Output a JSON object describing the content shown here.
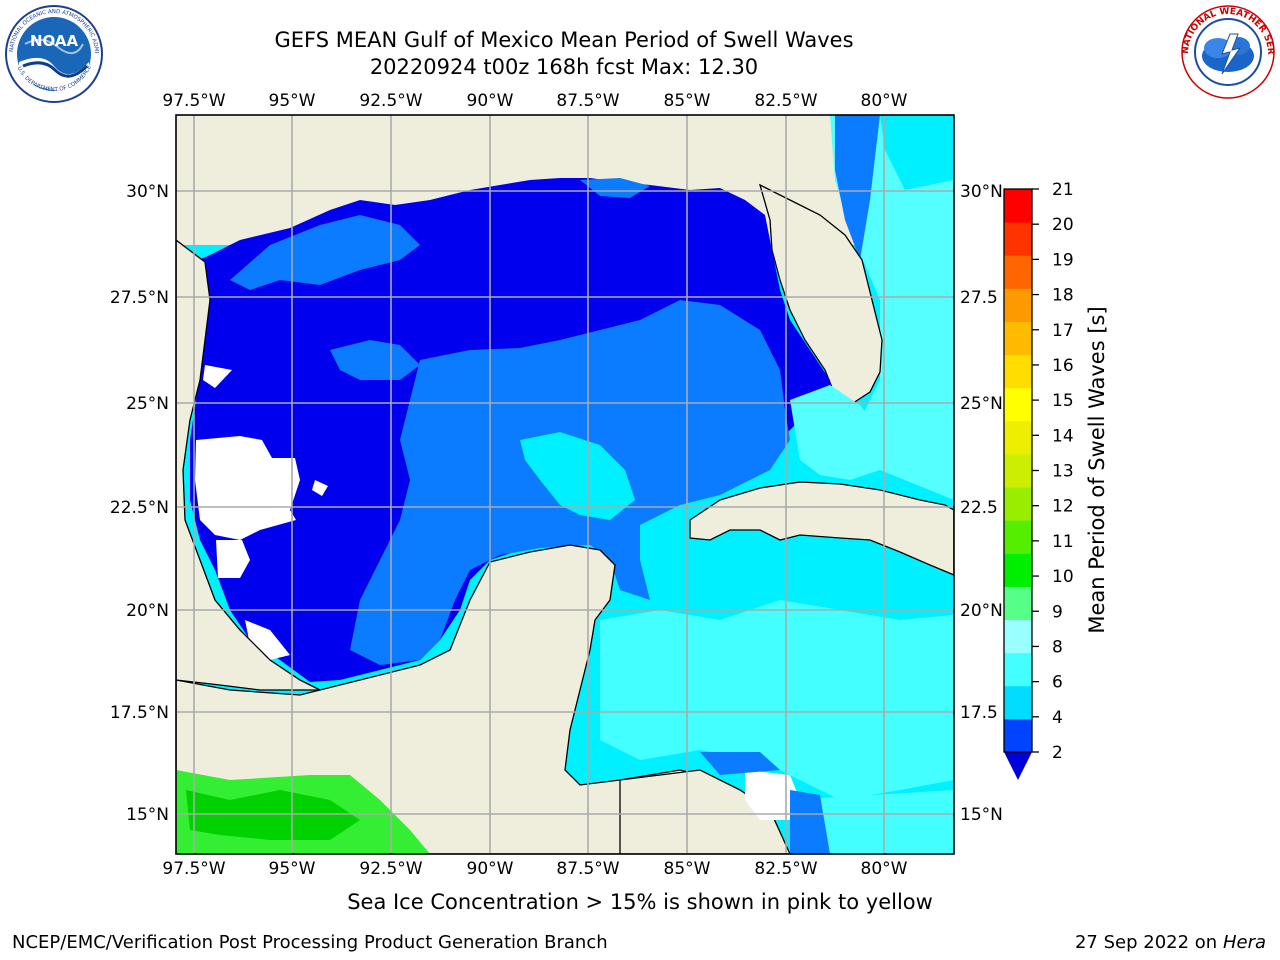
{
  "header": {
    "title_line1": "GEFS MEAN Gulf of Mexico Mean Period of Swell Waves",
    "title_line2": "20220924 t00z 168h fcst   Max: 12.30"
  },
  "logos": {
    "left": "noaa-logo",
    "right": "national-weather-service-logo",
    "left_text": "NOAA",
    "right_ring_text": "NATIONAL WEATHER SERVICE"
  },
  "map": {
    "lon_labels": [
      "97.5°W",
      "95°W",
      "92.5°W",
      "90°W",
      "87.5°W",
      "85°W",
      "82.5°W",
      "80°W"
    ],
    "lat_labels_left": [
      "30°N",
      "27.5°N",
      "25°N",
      "22.5°N",
      "20°N",
      "17.5°N",
      "15°N"
    ],
    "lat_labels_right": [
      "30°N",
      "27.5",
      "25°N",
      "22.5",
      "20°N",
      "17.5",
      "15°N"
    ],
    "gridline_color": "#aaaaaa",
    "land_color": "#efeddc"
  },
  "colorbar": {
    "label": "Mean Period of Swell Waves [s]",
    "ticks": [
      "2",
      "4",
      "6",
      "8",
      "9",
      "10",
      "11",
      "12",
      "13",
      "14",
      "15",
      "16",
      "17",
      "18",
      "19",
      "20",
      "21"
    ],
    "colors": [
      "#0044ff",
      "#00ddff",
      "#44ffff",
      "#99ffff",
      "#55ff88",
      "#00ee00",
      "#55ee00",
      "#99ee00",
      "#ccee00",
      "#eeee00",
      "#ffff00",
      "#ffdd00",
      "#ffbb00",
      "#ff9900",
      "#ff6600",
      "#ff3300",
      "#ff0000"
    ],
    "extend_color": "#0000dd"
  },
  "note": "Sea Ice Concentration > 15% is shown in pink to yellow",
  "footer": {
    "left": "NCEP/EMC/Verification Post Processing Product Generation Branch",
    "right_date": "27 Sep 2022 on",
    "right_host": "Hera"
  }
}
